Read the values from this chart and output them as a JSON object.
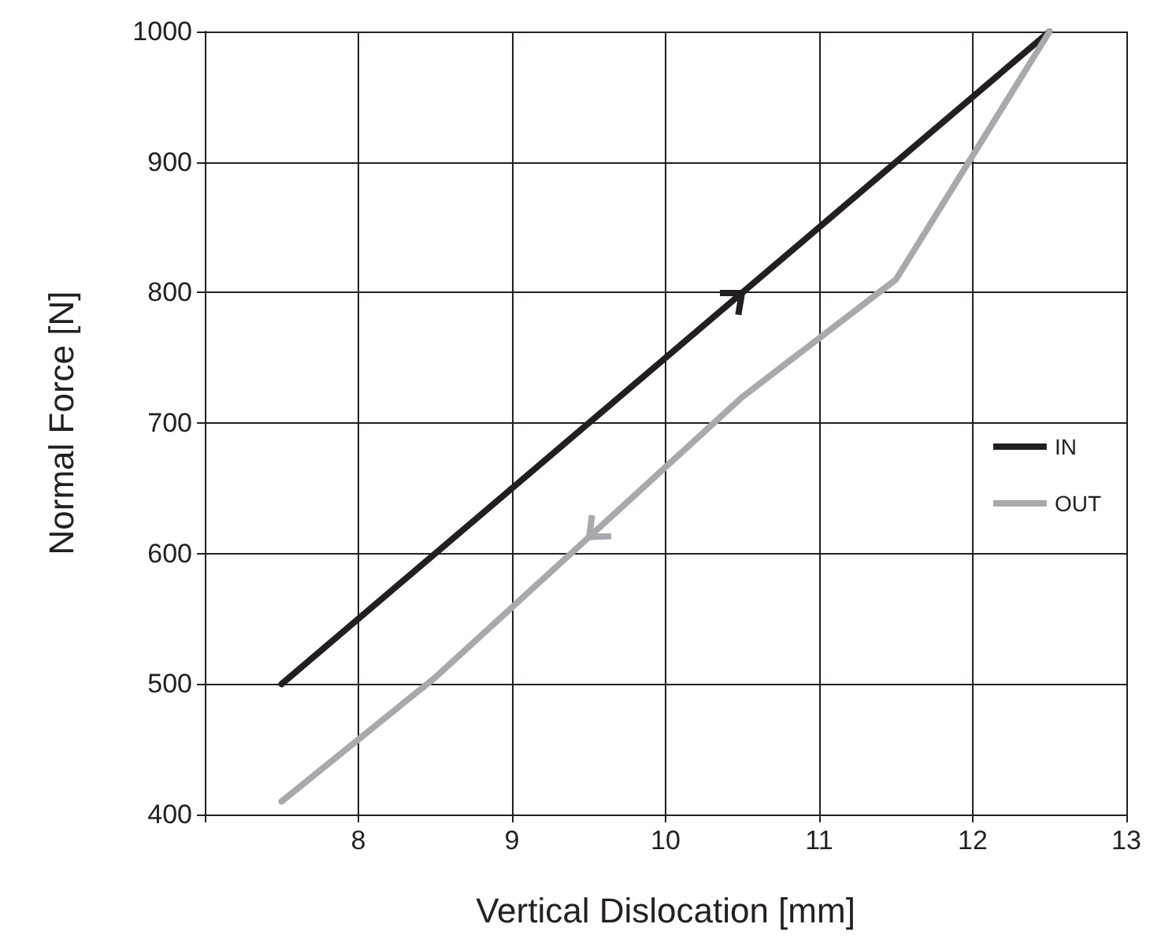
{
  "chart_data": {
    "type": "line",
    "xlabel": "Vertical Dislocation [mm]",
    "ylabel": "Normal Force [N]",
    "xlim": [
      7,
      13
    ],
    "xticks": [
      {
        "value": 7,
        "label": null
      },
      8,
      9,
      10,
      11,
      12,
      13
    ],
    "ylim": [
      400,
      1000
    ],
    "yticks": [
      400,
      500,
      600,
      700,
      800,
      900,
      1000
    ],
    "grid": true,
    "legend": "right",
    "marker": "none",
    "line_style": "solid",
    "series": [
      {
        "name": "IN",
        "color": "#231f20",
        "x": [
          7.5,
          12.5
        ],
        "values": [
          500,
          1000
        ]
      },
      {
        "name": "OUT",
        "color": "#a7a9ac",
        "x": [
          7.5,
          8.5,
          10.5,
          11.5,
          12,
          12.5
        ],
        "values": [
          410,
          505,
          720,
          810,
          905,
          1000
        ]
      }
    ]
  }
}
